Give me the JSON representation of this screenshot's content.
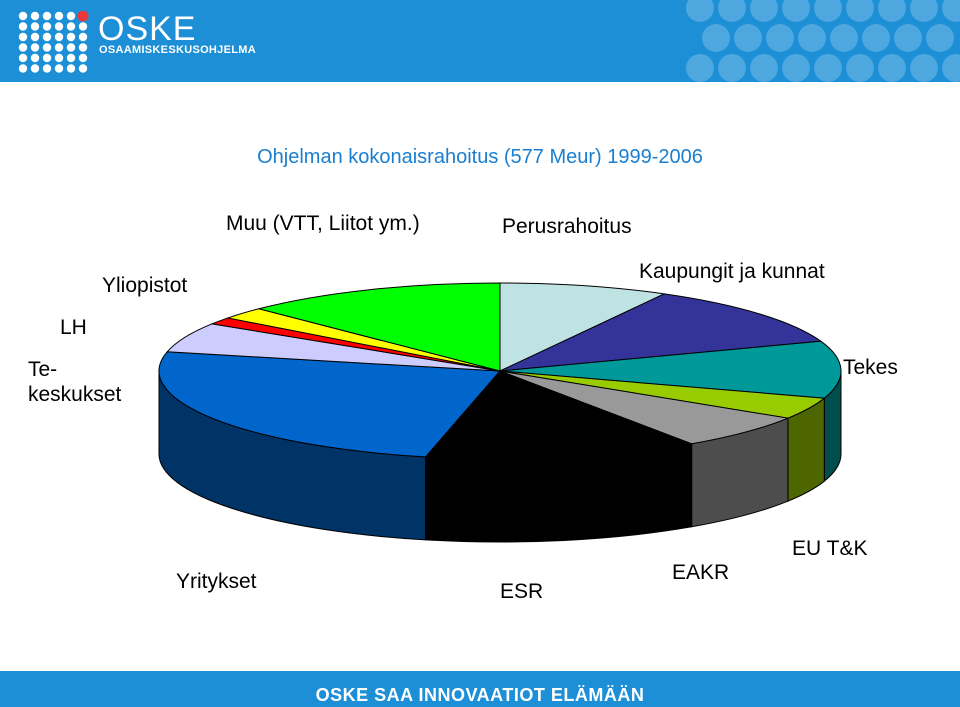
{
  "header": {
    "brand": "OSKE",
    "subtitle": "OSAAMISKESKUSOHJELMA"
  },
  "footer": {
    "slogan": "OSKE SAA INNOVAATIOT ELÄMÄÄN"
  },
  "chart_data": {
    "type": "pie",
    "title": "Ohjelman kokonaisrahoitus (577 Meur) 1999-2006",
    "legend": "none",
    "slices": [
      {
        "label": "Perusrahoitus",
        "value": 8.0,
        "color": "#bfe3e3"
      },
      {
        "label": "Kaupungit ja kunnat",
        "value": 11.5,
        "color": "#333399"
      },
      {
        "label": "Tekes",
        "value": 10.5,
        "color": "#009999"
      },
      {
        "label": "EU T&K",
        "value": 4.0,
        "color": "#99cc00"
      },
      {
        "label": "EAKR",
        "value": 6.5,
        "color": "#999999"
      },
      {
        "label": "ESR",
        "value": 13.0,
        "color": "#000000"
      },
      {
        "label": "Yritykset",
        "value": 25.0,
        "color": "#0066cc"
      },
      {
        "label": "Te-\nkeskukset",
        "value": 5.5,
        "color": "#ccccff"
      },
      {
        "label": "LH",
        "value": 1.3,
        "color": "#ff0000"
      },
      {
        "label": "Yliopistot",
        "value": 2.2,
        "color": "#ffff00"
      },
      {
        "label": "Muu (VTT, Liitot ym.)",
        "value": 12.5,
        "color": "#00ff00"
      }
    ]
  }
}
